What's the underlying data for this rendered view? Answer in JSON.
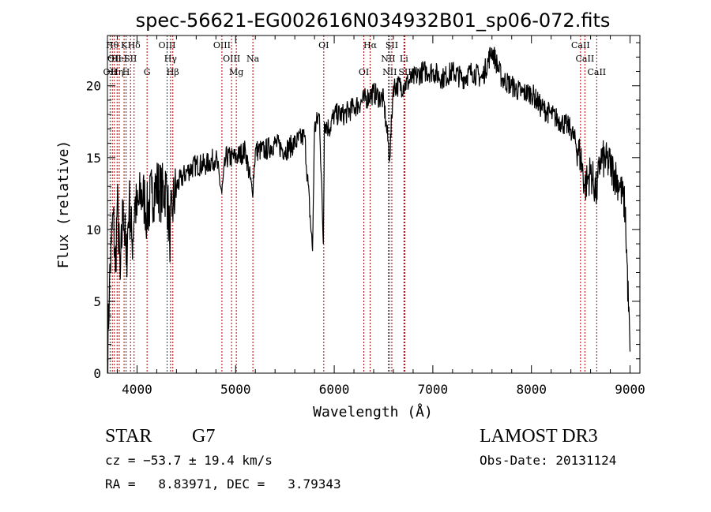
{
  "chart_data": {
    "type": "line",
    "title": "spec-56621-EG002616N034932B01_sp06-072.fits",
    "xlabel": "Wavelength (Å)",
    "ylabel": "Flux (relative)",
    "xlim": [
      3700,
      9100
    ],
    "ylim": [
      0,
      23.5
    ],
    "x_ticks": [
      4000,
      5000,
      6000,
      7000,
      8000,
      9000
    ],
    "y_ticks": [
      0,
      5,
      10,
      15,
      20
    ],
    "grid": false,
    "series": [
      {
        "x": [
          3700,
          3720,
          3740,
          3760,
          3780,
          3800,
          3830,
          3860,
          3890,
          3920,
          3950,
          3980,
          4000,
          4040,
          4080,
          4100,
          4150,
          4200,
          4250,
          4300,
          4330,
          4360,
          4400,
          4450,
          4500,
          4600,
          4700,
          4800,
          4860,
          4900,
          5000,
          5100,
          5170,
          5200,
          5300,
          5400,
          5500,
          5600,
          5700,
          5780,
          5800,
          5850,
          5890,
          5900,
          5950,
          6000,
          6100,
          6200,
          6300,
          6400,
          6500,
          6563,
          6600,
          6700,
          6800,
          6900,
          7000,
          7100,
          7200,
          7300,
          7400,
          7500,
          7600,
          7700,
          7800,
          7900,
          8000,
          8100,
          8200,
          8300,
          8400,
          8500,
          8542,
          8600,
          8662,
          8700,
          8800,
          8900,
          8950,
          9000
        ],
        "y": [
          1.0,
          6.0,
          9.0,
          11.0,
          7.0,
          12.0,
          6.5,
          12.0,
          7.5,
          12.0,
          9.0,
          12.0,
          11.0,
          12.5,
          12.0,
          11.0,
          12.5,
          13.0,
          12.5,
          13.0,
          9.5,
          11.5,
          13.0,
          13.5,
          14.0,
          14.5,
          14.5,
          15.0,
          12.5,
          15.0,
          15.0,
          15.5,
          12.5,
          15.5,
          15.5,
          16.0,
          15.5,
          16.0,
          16.5,
          8.5,
          17.0,
          18.0,
          9.0,
          17.5,
          17.0,
          18.0,
          18.0,
          18.5,
          19.0,
          19.5,
          19.0,
          15.0,
          20.0,
          20.0,
          20.5,
          21.0,
          21.0,
          20.5,
          21.0,
          20.5,
          21.0,
          20.5,
          22.5,
          20.5,
          20.0,
          19.5,
          19.5,
          18.5,
          18.0,
          17.5,
          17.0,
          15.0,
          13.0,
          14.0,
          12.5,
          15.0,
          14.5,
          13.0,
          11.5,
          1.5
        ]
      }
    ],
    "lines": [
      {
        "x": 3727,
        "label": "OII",
        "row": 2
      },
      {
        "x": 3750,
        "label": "Hθ",
        "row": 0
      },
      {
        "x": 3771,
        "label": "OII",
        "row": 1
      },
      {
        "x": 3798,
        "label": "Hη",
        "row": 2
      },
      {
        "x": 3820,
        "label": "HeI",
        "row": 1
      },
      {
        "x": 3869,
        "label": "K",
        "row": 0
      },
      {
        "x": 3889,
        "label": "H",
        "row": 2
      },
      {
        "x": 3934,
        "label": "SII",
        "row": 1
      },
      {
        "x": 3970,
        "label": "Hδ",
        "row": 0
      },
      {
        "x": 4102,
        "label": "G",
        "row": 2
      },
      {
        "x": 4305,
        "label": "OIII",
        "row": 0
      },
      {
        "x": 4340,
        "label": "Hγ",
        "row": 1
      },
      {
        "x": 4363,
        "label": "Hβ",
        "row": 2
      },
      {
        "x": 4861,
        "label": "OIII",
        "row": 0
      },
      {
        "x": 4959,
        "label": "OIII",
        "row": 1
      },
      {
        "x": 5007,
        "label": "Mg",
        "row": 2
      },
      {
        "x": 5175,
        "label": "Na",
        "row": 1
      },
      {
        "x": 5894,
        "label": "OI",
        "row": 0
      },
      {
        "x": 6300,
        "label": "OI",
        "row": 2
      },
      {
        "x": 6364,
        "label": "Hα",
        "row": 0
      },
      {
        "x": 6548,
        "label": "NII",
        "row": 1
      },
      {
        "x": 6563,
        "label": "NII",
        "row": 2
      },
      {
        "x": 6584,
        "label": "SII",
        "row": 0
      },
      {
        "x": 6707,
        "label": "Li",
        "row": 1
      },
      {
        "x": 6716,
        "label": "SII",
        "row": 2
      },
      {
        "x": 8498,
        "label": "CaII",
        "row": 0
      },
      {
        "x": 8542,
        "label": "CaII",
        "row": 1
      },
      {
        "x": 8662,
        "label": "CaII",
        "row": 2
      }
    ]
  },
  "info": {
    "class_label": "STAR",
    "subclass": "G7",
    "survey": "LAMOST DR3",
    "redshift": "cz = −53.7 ± 19.4 km/s",
    "obs_date": "Obs-Date: 20131124",
    "coords": "RA =   8.83971, DEC =   3.79343"
  }
}
